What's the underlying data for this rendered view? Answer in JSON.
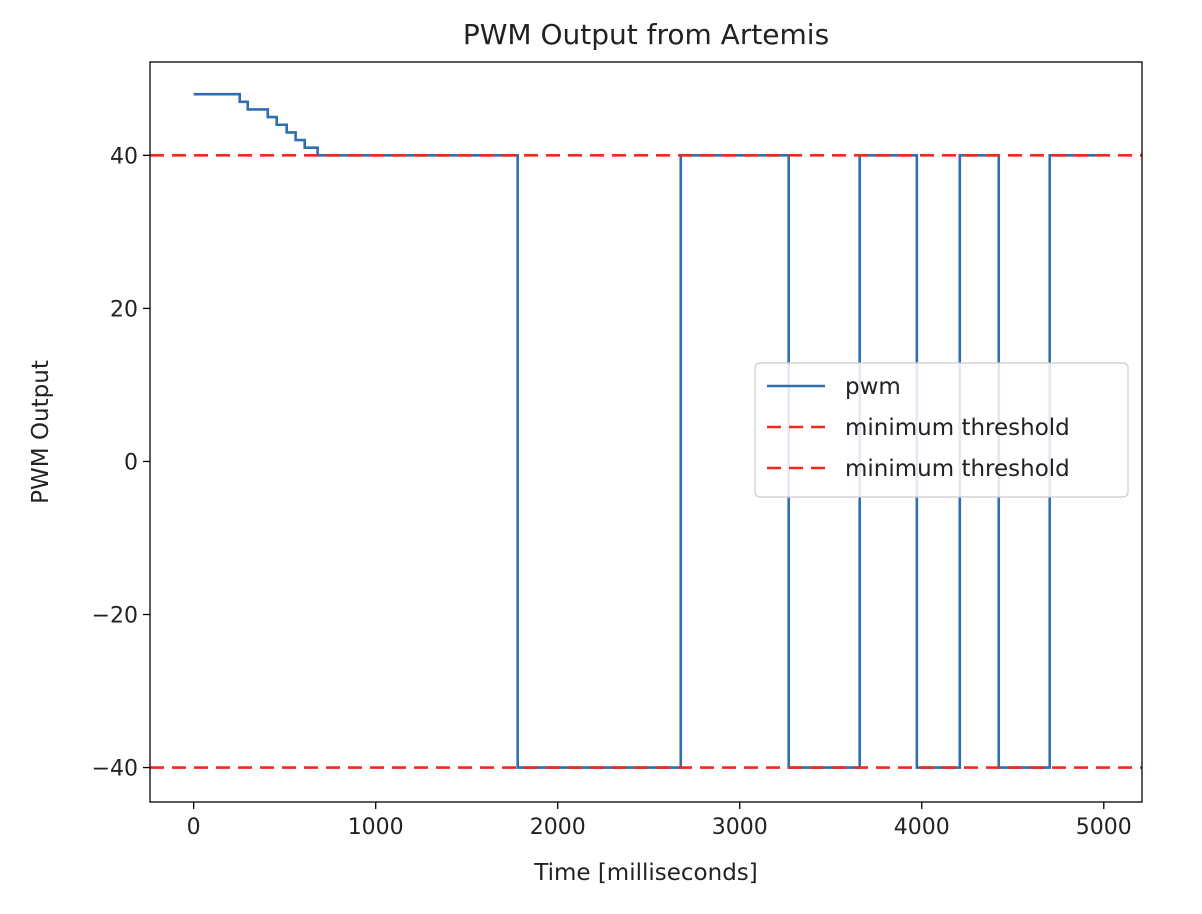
{
  "chart_data": {
    "type": "line",
    "title": "PWM Output from Artemis",
    "xlabel": "Time [milliseconds]",
    "ylabel": "PWM Output",
    "xlim": [
      -240,
      5210
    ],
    "ylim": [
      -44.5,
      52.2
    ],
    "xticks": [
      0,
      1000,
      2000,
      3000,
      4000,
      5000
    ],
    "xtick_labels": [
      "0",
      "1000",
      "2000",
      "3000",
      "4000",
      "5000"
    ],
    "yticks": [
      40,
      20,
      0,
      -20,
      -40
    ],
    "ytick_labels": [
      "40",
      "20",
      "0",
      "−20",
      "−40"
    ],
    "grid": false,
    "legend_placement": "center-right",
    "series": [
      {
        "name": "pwm",
        "color": "#2f6fb0",
        "style": "solid",
        "x": [
          0,
          253,
          253,
          297,
          297,
          407,
          407,
          456,
          456,
          511,
          511,
          560,
          560,
          610,
          610,
          681,
          681,
          1780,
          1780,
          2676,
          2676,
          3269,
          3269,
          3659,
          3659,
          3973,
          3973,
          4209,
          4209,
          4423,
          4423,
          4703,
          4703,
          4962
        ],
        "y": [
          48,
          48,
          47,
          47,
          46,
          46,
          45,
          45,
          44,
          44,
          43,
          43,
          42,
          42,
          41,
          41,
          40,
          40,
          -40,
          -40,
          40,
          40,
          -40,
          -40,
          40,
          40,
          -40,
          -40,
          40,
          40,
          -40,
          -40,
          40,
          40
        ]
      },
      {
        "name": "minimum threshold",
        "color": "#f0281e",
        "style": "dashed",
        "hline": 40
      },
      {
        "name": "minimum threshold",
        "color": "#f0281e",
        "style": "dashed",
        "hline": -40
      }
    ]
  }
}
